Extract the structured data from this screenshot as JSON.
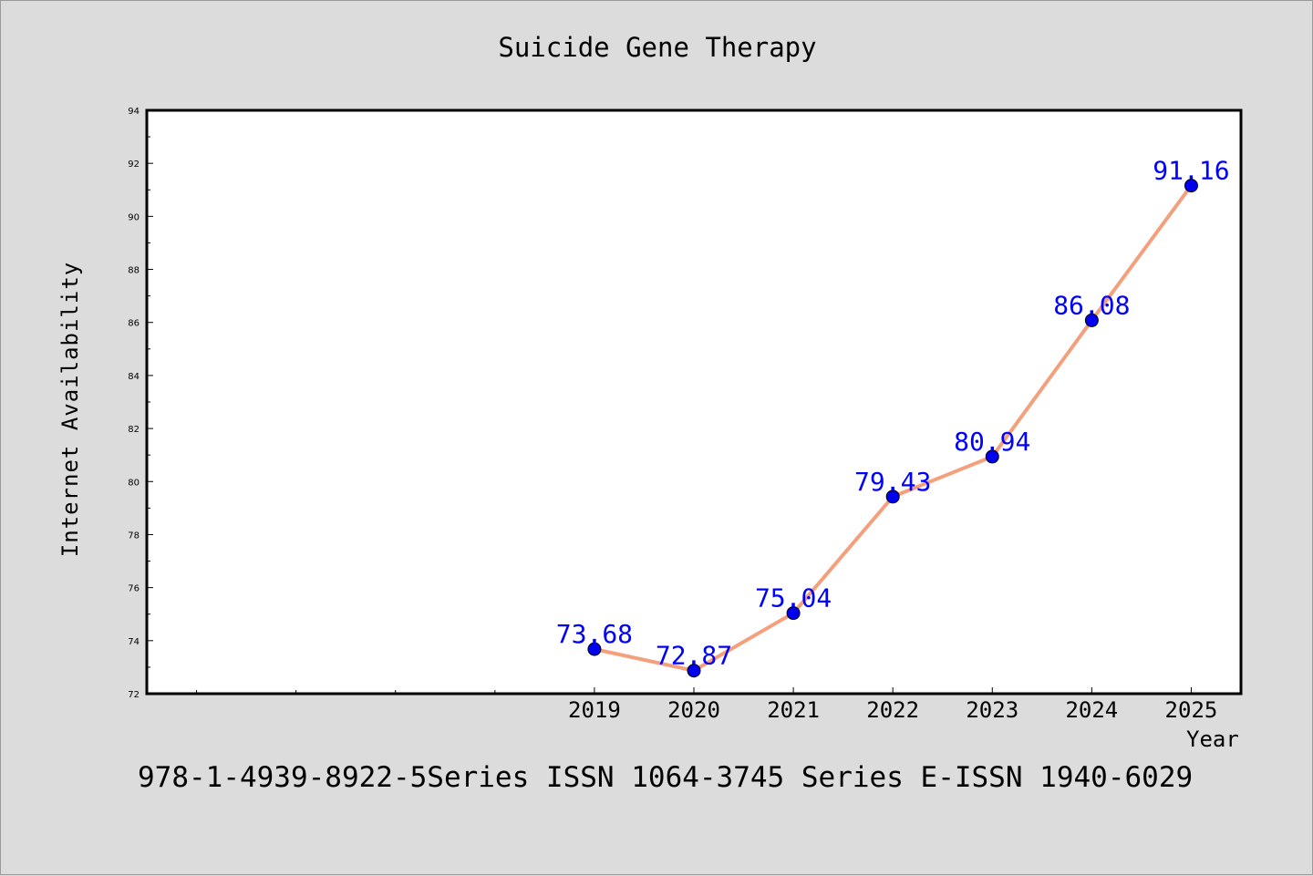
{
  "title": "Suicide Gene Therapy",
  "footer_text": "978-1-4939-8922-5Series ISSN 1064-3745 Series E-ISSN 1940-6029",
  "colors": {
    "background": "#dcdcdc",
    "plot_background": "#ffffff",
    "line": "#f4a07c",
    "marker": "#0000ee",
    "data_label": "#0000ff"
  },
  "chart_data": {
    "type": "line",
    "title": "Suicide Gene Therapy",
    "xlabel": "Year",
    "ylabel": "Internet Availability",
    "x_ticks_labeled": [
      "2019",
      "2020",
      "2021",
      "2022",
      "2023",
      "2024",
      "2025"
    ],
    "x_minor_ticks": [
      "2015",
      "2016",
      "2017",
      "2018"
    ],
    "xlim": [
      2014.5,
      2025.5
    ],
    "ylim": [
      72,
      94
    ],
    "y_ticks": [
      72,
      74,
      76,
      78,
      80,
      82,
      84,
      86,
      88,
      90,
      92,
      94
    ],
    "grid": false,
    "legend": "none",
    "series": [
      {
        "x": [
          2019,
          2020,
          2021,
          2022,
          2023,
          2024,
          2025
        ],
        "values": [
          73.68,
          72.87,
          75.04,
          79.43,
          80.94,
          86.08,
          91.16
        ],
        "labels": [
          "73.68",
          "72.87",
          "75.04",
          "79.43",
          "80.94",
          "86.08",
          "91.16"
        ]
      }
    ]
  }
}
